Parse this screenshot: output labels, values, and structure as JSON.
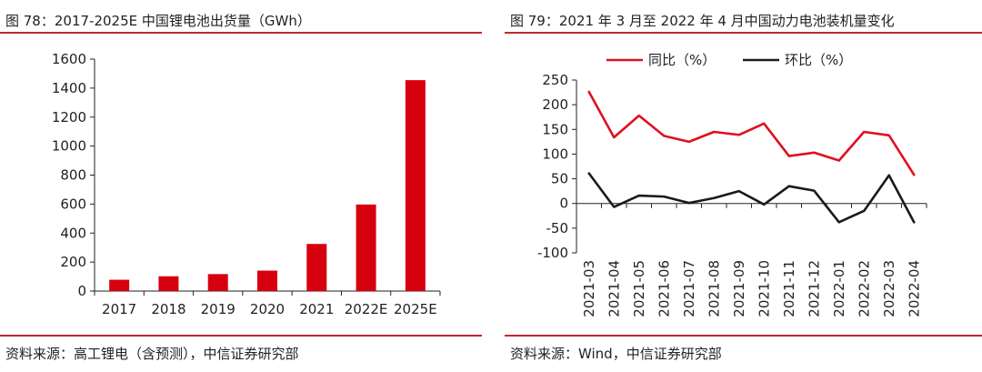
{
  "colors": {
    "accent": "#c0272d",
    "bar": "#d7000f",
    "yoy_line": "#e0101e",
    "mom_line": "#1a1a1a"
  },
  "left": {
    "title": "图 78：2017-2025E 中国锂电池出货量（GWh）",
    "source": "资料来源：高工锂电（含预测），中信证券研究部"
  },
  "right": {
    "title": "图 79：2021 年 3 月至 2022 年 4 月中国动力电池装机量变化",
    "source": "资料来源：Wind，中信证券研究部"
  },
  "chart_data": [
    {
      "type": "bar",
      "title": "",
      "xlabel": "",
      "ylabel": "",
      "categories": [
        "2017",
        "2018",
        "2019",
        "2020",
        "2021",
        "2022E",
        "2025E"
      ],
      "values": [
        78,
        102,
        117,
        141,
        325,
        597,
        1455
      ],
      "ylim": [
        0,
        1600
      ],
      "yticks": [
        0,
        200,
        400,
        600,
        800,
        1000,
        1200,
        1400,
        1600
      ],
      "grid": false,
      "legend": "none"
    },
    {
      "type": "line",
      "title": "",
      "xlabel": "",
      "ylabel": "",
      "categories": [
        "2021-03",
        "2021-04",
        "2021-05",
        "2021-06",
        "2021-07",
        "2021-08",
        "2021-09",
        "2021-10",
        "2021-11",
        "2021-12",
        "2022-01",
        "2022-02",
        "2022-03",
        "2022-04"
      ],
      "series": [
        {
          "name": "同比（%）",
          "values": [
            226,
            134,
            178,
            137,
            125,
            145,
            139,
            162,
            96,
            103,
            87,
            145,
            138,
            58
          ]
        },
        {
          "name": "环比（%）",
          "values": [
            61,
            -7,
            16,
            14,
            1,
            11,
            25,
            -2,
            35,
            26,
            -38,
            -15,
            57,
            -38
          ]
        }
      ],
      "ylim": [
        -100,
        250
      ],
      "yticks": [
        -100,
        -50,
        0,
        50,
        100,
        150,
        200,
        250
      ],
      "grid": false,
      "legend": "top"
    }
  ]
}
